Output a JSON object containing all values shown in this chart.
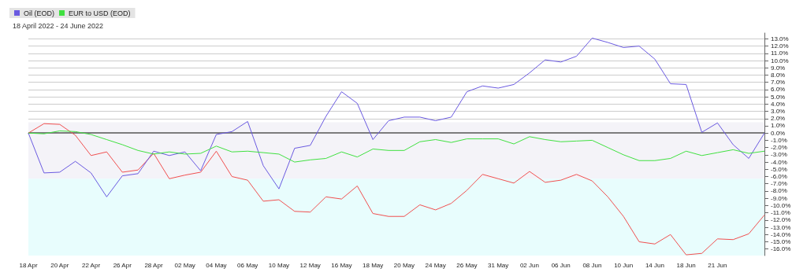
{
  "chart_data": {
    "type": "line",
    "subtitle": "18 April 2022 - 24 June 2022",
    "categories": [
      "18 Apr",
      null,
      "20 Apr",
      null,
      "22 Apr",
      null,
      "26 Apr",
      null,
      "28 Apr",
      null,
      "02 May",
      null,
      "04 May",
      null,
      "06 May",
      null,
      "10 May",
      null,
      "12 May",
      null,
      "16 May",
      null,
      "18 May",
      null,
      "20 May",
      null,
      "24 May",
      null,
      "26 May",
      null,
      "31 May",
      null,
      "02 Jun",
      null,
      "06 Jun",
      null,
      "08 Jun",
      null,
      "10 Jun",
      null,
      "14 Jun",
      null,
      "18 Jun",
      null,
      "21 Jun",
      null,
      null,
      null
    ],
    "series": [
      {
        "color": "#f05050",
        "values": [
          0,
          1.3,
          1.2,
          -0.3,
          -3.1,
          -2.6,
          -5.4,
          -5.1,
          -2.8,
          -6.3,
          -5.8,
          -5.4,
          -2.5,
          -6.0,
          -6.5,
          -9.4,
          -9.2,
          -10.8,
          -10.9,
          -8.8,
          -9.1,
          -7.3,
          -11.1,
          -11.5,
          -11.5,
          -9.9,
          -10.6,
          -9.7,
          -7.9,
          -5.7,
          -6.3,
          -6.9,
          -5.3,
          -6.8,
          -6.5,
          -5.7,
          -6.6,
          -8.8,
          -11.5,
          -15.0,
          -15.3,
          -14.0,
          -16.8,
          -16.6,
          -14.6,
          -14.7,
          -13.9,
          -11.3
        ]
      },
      {
        "name": "Oil (EOD)",
        "color": "#6a5ae0",
        "values": [
          0,
          -5.5,
          -5.4,
          -3.9,
          -5.5,
          -8.8,
          -5.9,
          -5.6,
          -2.5,
          -3.1,
          -2.6,
          -5.2,
          -0.2,
          0.2,
          1.6,
          -4.5,
          -7.7,
          -2.1,
          -1.7,
          2.3,
          5.7,
          4.1,
          -0.9,
          1.7,
          2.2,
          2.2,
          1.7,
          2.2,
          5.7,
          6.5,
          6.2,
          6.7,
          8.3,
          10.1,
          9.8,
          10.6,
          13.1,
          12.5,
          11.8,
          12.0,
          10.2,
          6.8,
          6.7,
          0.1,
          1.4,
          -1.6,
          -3.5,
          0
        ]
      },
      {
        "name": "EUR to USD (EOD)",
        "color": "#40e040",
        "values": [
          0,
          -0.1,
          0.3,
          0.2,
          -0.2,
          -0.9,
          -1.6,
          -2.4,
          -2.9,
          -2.6,
          -2.9,
          -2.8,
          -1.8,
          -2.6,
          -2.5,
          -2.7,
          -2.9,
          -4.0,
          -3.7,
          -3.5,
          -2.6,
          -3.3,
          -2.2,
          -2.4,
          -2.4,
          -1.2,
          -0.9,
          -1.3,
          -0.8,
          -0.8,
          -0.8,
          -1.5,
          -0.5,
          -0.9,
          -1.2,
          -1.1,
          -1.0,
          -2.0,
          -3.0,
          -3.8,
          -3.8,
          -3.5,
          -2.5,
          -3.1,
          -2.7,
          -2.3,
          -2.8,
          -2.5
        ]
      }
    ],
    "ylim": [
      -16.9,
      13.8
    ],
    "yticks": [
      {
        "value": -16,
        "label": "-16.0%"
      },
      {
        "value": -15,
        "label": "-15.0%"
      },
      {
        "value": -14,
        "label": "-14.0%"
      },
      {
        "value": -13,
        "label": "-13.0%"
      },
      {
        "value": -12,
        "label": "-12.0%"
      },
      {
        "value": -11,
        "label": "-11.0%"
      },
      {
        "value": -10,
        "label": "-10.0%"
      },
      {
        "value": -9,
        "label": "-9.0%"
      },
      {
        "value": -8,
        "label": "-8.0%"
      },
      {
        "value": -7,
        "label": "-7.0%"
      },
      {
        "value": -6,
        "label": "-6.0%"
      },
      {
        "value": -5,
        "label": "-5.0%"
      },
      {
        "value": -4,
        "label": "-4.0%"
      },
      {
        "value": -3,
        "label": "-3.0%"
      },
      {
        "value": -2,
        "label": "-2.0%"
      },
      {
        "value": -1,
        "label": "-1.0%"
      },
      {
        "value": 0,
        "label": "0.0%"
      },
      {
        "value": 1,
        "label": "1.0%"
      },
      {
        "value": 2,
        "label": "2.0%"
      },
      {
        "value": 3,
        "label": "3.0%"
      },
      {
        "value": 4,
        "label": "4.0%"
      },
      {
        "value": 5,
        "label": "5.0%"
      },
      {
        "value": 6,
        "label": "6.0%"
      },
      {
        "value": 7,
        "label": "7.0%"
      },
      {
        "value": 8,
        "label": "8.0%"
      },
      {
        "value": 9,
        "label": "9.0%"
      },
      {
        "value": 10,
        "label": "10.0%"
      },
      {
        "value": 11,
        "label": "11.0%"
      },
      {
        "value": 12,
        "label": "12.0%"
      },
      {
        "value": 13,
        "label": "13.0%"
      }
    ],
    "grid": "y",
    "legend": "top left",
    "marker": "none",
    "ref_lines": [
      {
        "axis": "y",
        "value": 0,
        "color": "#555555"
      }
    ],
    "bands": [
      {
        "axis": "y",
        "from": -6.3,
        "to": 1.5,
        "color": "#f4f3f8"
      },
      {
        "axis": "y",
        "from": -16.9,
        "to": -6.3,
        "color": "#e8fdfd"
      }
    ]
  }
}
